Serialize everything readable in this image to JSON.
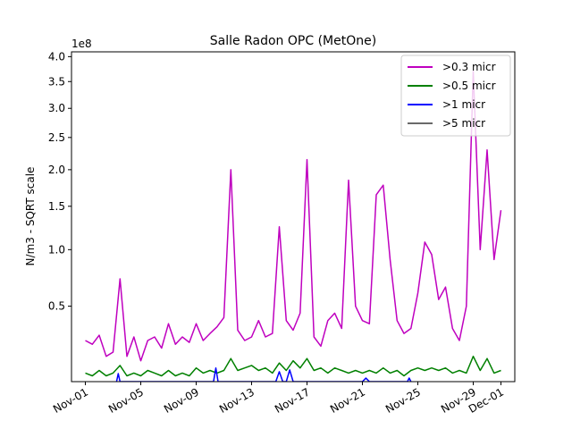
{
  "chart_data": {
    "type": "line",
    "title": "Salle Radon OPC (MetOne)",
    "xlabel": "",
    "ylabel": "N/m3 - SQRT scale",
    "y_scale": "sqrt",
    "y_multiplier_label": "1e8",
    "xlim": [
      "2014-10-31",
      "2014-12-02"
    ],
    "ylim": [
      0.1,
      4.1
    ],
    "x_ticks": [
      {
        "date": "2014-11-01",
        "label": "Nov-01"
      },
      {
        "date": "2014-11-05",
        "label": "Nov-05"
      },
      {
        "date": "2014-11-09",
        "label": "Nov-09"
      },
      {
        "date": "2014-11-13",
        "label": "Nov-13"
      },
      {
        "date": "2014-11-17",
        "label": "Nov-17"
      },
      {
        "date": "2014-11-21",
        "label": "Nov-21"
      },
      {
        "date": "2014-11-25",
        "label": "Nov-25"
      },
      {
        "date": "2014-11-29",
        "label": "Nov-29"
      },
      {
        "date": "2014-12-01",
        "label": "Dec-01"
      }
    ],
    "y_ticks": [
      {
        "value": 0.5,
        "label": "0.5"
      },
      {
        "value": 1.0,
        "label": "1.0"
      },
      {
        "value": 1.5,
        "label": "1.5"
      },
      {
        "value": 2.0,
        "label": "2.0"
      },
      {
        "value": 2.5,
        "label": "2.5"
      },
      {
        "value": 3.0,
        "label": "3.0"
      },
      {
        "value": 3.5,
        "label": "3.5"
      },
      {
        "value": 4.0,
        "label": "4.0"
      }
    ],
    "legend_position": "top-right",
    "grid": false,
    "series": [
      {
        "name": ">0.3 micr",
        "color": "#bf00bf",
        "points": [
          [
            "2014-11-01",
            0.28
          ],
          [
            "2014-11-01T12:00",
            0.26
          ],
          [
            "2014-11-02",
            0.31
          ],
          [
            "2014-11-02T12:00",
            0.2
          ],
          [
            "2014-11-03",
            0.22
          ],
          [
            "2014-11-03T12:00",
            0.72
          ],
          [
            "2014-11-04",
            0.2
          ],
          [
            "2014-11-04T12:00",
            0.3
          ],
          [
            "2014-11-05",
            0.18
          ],
          [
            "2014-11-05T12:00",
            0.28
          ],
          [
            "2014-11-06",
            0.3
          ],
          [
            "2014-11-06T12:00",
            0.24
          ],
          [
            "2014-11-07",
            0.38
          ],
          [
            "2014-11-07T12:00",
            0.26
          ],
          [
            "2014-11-08",
            0.3
          ],
          [
            "2014-11-08T12:00",
            0.27
          ],
          [
            "2014-11-09",
            0.38
          ],
          [
            "2014-11-09T12:00",
            0.28
          ],
          [
            "2014-11-10",
            0.32
          ],
          [
            "2014-11-10T12:00",
            0.36
          ],
          [
            "2014-11-11",
            0.42
          ],
          [
            "2014-11-11T12:00",
            2.0
          ],
          [
            "2014-11-12",
            0.34
          ],
          [
            "2014-11-12T12:00",
            0.28
          ],
          [
            "2014-11-13",
            0.3
          ],
          [
            "2014-11-13T12:00",
            0.4
          ],
          [
            "2014-11-14",
            0.3
          ],
          [
            "2014-11-14T12:00",
            0.32
          ],
          [
            "2014-11-15",
            1.25
          ],
          [
            "2014-11-15T12:00",
            0.4
          ],
          [
            "2014-11-16",
            0.34
          ],
          [
            "2014-11-16T12:00",
            0.45
          ],
          [
            "2014-11-17",
            2.15
          ],
          [
            "2014-11-17T12:00",
            0.3
          ],
          [
            "2014-11-18",
            0.25
          ],
          [
            "2014-11-18T12:00",
            0.4
          ],
          [
            "2014-11-19",
            0.45
          ],
          [
            "2014-11-19T12:00",
            0.35
          ],
          [
            "2014-11-20",
            1.85
          ],
          [
            "2014-11-20T12:00",
            0.5
          ],
          [
            "2014-11-21",
            0.4
          ],
          [
            "2014-11-21T12:00",
            0.38
          ],
          [
            "2014-11-22",
            1.65
          ],
          [
            "2014-11-22T12:00",
            1.78
          ],
          [
            "2014-11-23",
            0.9
          ],
          [
            "2014-11-23T12:00",
            0.4
          ],
          [
            "2014-11-24",
            0.32
          ],
          [
            "2014-11-24T12:00",
            0.35
          ],
          [
            "2014-11-25",
            0.6
          ],
          [
            "2014-11-25T12:00",
            1.08
          ],
          [
            "2014-11-26",
            0.95
          ],
          [
            "2014-11-26T12:00",
            0.55
          ],
          [
            "2014-11-27",
            0.65
          ],
          [
            "2014-11-27T12:00",
            0.35
          ],
          [
            "2014-11-28",
            0.28
          ],
          [
            "2014-11-28T12:00",
            0.5
          ],
          [
            "2014-11-29",
            3.7
          ],
          [
            "2014-11-29T12:00",
            1.0
          ],
          [
            "2014-11-30",
            2.3
          ],
          [
            "2014-11-30T12:00",
            0.9
          ],
          [
            "2014-12-01",
            1.45
          ]
        ]
      },
      {
        "name": ">0.5 micr",
        "color": "#008000",
        "points": [
          [
            "2014-11-01",
            0.13
          ],
          [
            "2014-11-01T12:00",
            0.12
          ],
          [
            "2014-11-02",
            0.14
          ],
          [
            "2014-11-02T12:00",
            0.12
          ],
          [
            "2014-11-03",
            0.13
          ],
          [
            "2014-11-03T12:00",
            0.16
          ],
          [
            "2014-11-04",
            0.12
          ],
          [
            "2014-11-04T12:00",
            0.13
          ],
          [
            "2014-11-05",
            0.12
          ],
          [
            "2014-11-05T12:00",
            0.14
          ],
          [
            "2014-11-06",
            0.13
          ],
          [
            "2014-11-06T12:00",
            0.12
          ],
          [
            "2014-11-07",
            0.14
          ],
          [
            "2014-11-07T12:00",
            0.12
          ],
          [
            "2014-11-08",
            0.13
          ],
          [
            "2014-11-08T12:00",
            0.12
          ],
          [
            "2014-11-09",
            0.15
          ],
          [
            "2014-11-09T12:00",
            0.13
          ],
          [
            "2014-11-10",
            0.14
          ],
          [
            "2014-11-10T12:00",
            0.13
          ],
          [
            "2014-11-11",
            0.14
          ],
          [
            "2014-11-11T12:00",
            0.19
          ],
          [
            "2014-11-12",
            0.14
          ],
          [
            "2014-11-12T12:00",
            0.15
          ],
          [
            "2014-11-13",
            0.16
          ],
          [
            "2014-11-13T12:00",
            0.14
          ],
          [
            "2014-11-14",
            0.15
          ],
          [
            "2014-11-14T12:00",
            0.13
          ],
          [
            "2014-11-15",
            0.17
          ],
          [
            "2014-11-15T12:00",
            0.14
          ],
          [
            "2014-11-16",
            0.18
          ],
          [
            "2014-11-16T12:00",
            0.15
          ],
          [
            "2014-11-17",
            0.19
          ],
          [
            "2014-11-17T12:00",
            0.14
          ],
          [
            "2014-11-18",
            0.15
          ],
          [
            "2014-11-18T12:00",
            0.13
          ],
          [
            "2014-11-19",
            0.15
          ],
          [
            "2014-11-19T12:00",
            0.14
          ],
          [
            "2014-11-20",
            0.13
          ],
          [
            "2014-11-20T12:00",
            0.14
          ],
          [
            "2014-11-21",
            0.13
          ],
          [
            "2014-11-21T12:00",
            0.14
          ],
          [
            "2014-11-22",
            0.13
          ],
          [
            "2014-11-22T12:00",
            0.15
          ],
          [
            "2014-11-23",
            0.13
          ],
          [
            "2014-11-23T12:00",
            0.14
          ],
          [
            "2014-11-24",
            0.12
          ],
          [
            "2014-11-24T12:00",
            0.14
          ],
          [
            "2014-11-25",
            0.15
          ],
          [
            "2014-11-25T12:00",
            0.14
          ],
          [
            "2014-11-26",
            0.15
          ],
          [
            "2014-11-26T12:00",
            0.14
          ],
          [
            "2014-11-27",
            0.15
          ],
          [
            "2014-11-27T12:00",
            0.13
          ],
          [
            "2014-11-28",
            0.14
          ],
          [
            "2014-11-28T12:00",
            0.13
          ],
          [
            "2014-11-29",
            0.2
          ],
          [
            "2014-11-29T12:00",
            0.14
          ],
          [
            "2014-11-30",
            0.19
          ],
          [
            "2014-11-30T12:00",
            0.13
          ],
          [
            "2014-12-01",
            0.14
          ]
        ]
      },
      {
        "name": ">1 micr",
        "color": "#0000ff",
        "points": [
          [
            "2014-11-03T06:00",
            0.1
          ],
          [
            "2014-11-03T09:00",
            0.128
          ],
          [
            "2014-11-03T12:00",
            0.1
          ],
          [
            "2014-11-10T06:00",
            0.1
          ],
          [
            "2014-11-10T10:00",
            0.15
          ],
          [
            "2014-11-10T14:00",
            0.1
          ],
          [
            "2014-11-14T18:00",
            0.1
          ],
          [
            "2014-11-15T00:00",
            0.135
          ],
          [
            "2014-11-15T06:00",
            0.1
          ],
          [
            "2014-11-15T12:00",
            0.1
          ],
          [
            "2014-11-15T18:00",
            0.142
          ],
          [
            "2014-11-16T00:00",
            0.1
          ],
          [
            "2014-11-21T00:00",
            0.1
          ],
          [
            "2014-11-21T06:00",
            0.112
          ],
          [
            "2014-11-21T12:00",
            0.1
          ],
          [
            "2014-11-24T06:00",
            0.1
          ],
          [
            "2014-11-24T09:00",
            0.112
          ],
          [
            "2014-11-24T12:00",
            0.1
          ]
        ]
      },
      {
        "name": ">5 micr",
        "color": "#696969",
        "points": []
      }
    ]
  }
}
